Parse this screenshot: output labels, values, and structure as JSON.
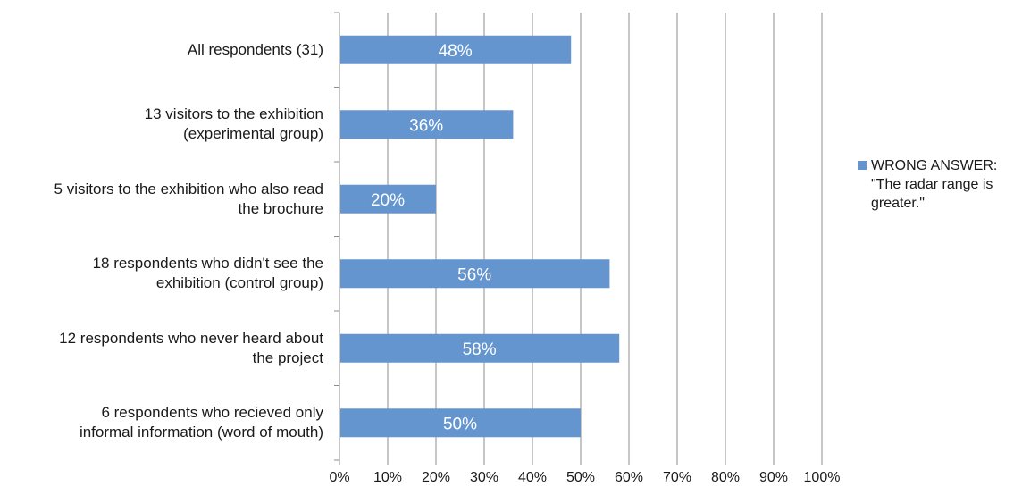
{
  "chart_data": {
    "type": "bar",
    "orientation": "horizontal",
    "categories": [
      "All respondents (31)",
      "13 visitors to the exhibition (experimental group)",
      "5 visitors to the exhibition who also read the brochure",
      "18 respondents who didn't see the exhibition (control group)",
      "12 respondents who never heard about the project",
      "6 respondents who recieved only informal information (word of mouth)"
    ],
    "category_lines": [
      [
        "All respondents (31)"
      ],
      [
        "13 visitors to the exhibition",
        "(experimental group)"
      ],
      [
        "5 visitors to the exhibition who also read",
        "the brochure"
      ],
      [
        "18 respondents who didn't see the",
        "exhibition (control group)"
      ],
      [
        "12 respondents who never heard about",
        "the project"
      ],
      [
        "6 respondents who recieved only",
        "informal information (word of mouth)"
      ]
    ],
    "series": [
      {
        "name": "WRONG ANSWER: \"The radar range is greater.\"",
        "values": [
          48,
          36,
          20,
          56,
          58,
          50
        ],
        "data_labels": [
          "48%",
          "36%",
          "20%",
          "56%",
          "58%",
          "50%"
        ],
        "color": "#6495cf"
      }
    ],
    "xlim": [
      0,
      100
    ],
    "x_ticks": [
      "0%",
      "10%",
      "20%",
      "30%",
      "40%",
      "50%",
      "60%",
      "70%",
      "80%",
      "90%",
      "100%"
    ],
    "grid": "vertical",
    "legend": {
      "placement": "right",
      "lines": [
        "WRONG ANSWER:",
        "\"The radar range is",
        "greater.\""
      ]
    }
  }
}
